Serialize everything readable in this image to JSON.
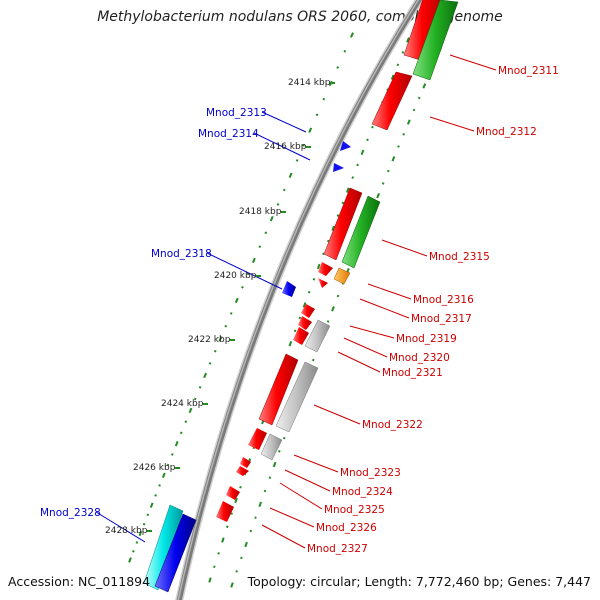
{
  "title": "Methylobacterium nodulans ORS 2060, complete genome",
  "footer": {
    "accession": "Accession: NC_011894",
    "summary": "Topology: circular; Length: 7,772,460 bp; Genes: 7,447"
  },
  "colors": {
    "forward": "#ff0000",
    "reverse": "#0000ff",
    "rna": "#00cc00",
    "pseudo": "#bbbbbb",
    "other": "#ff9900",
    "cyan": "#00e5e5",
    "label_forward": "#cc0000",
    "label_reverse": "#0000cc",
    "tick": "#228b22"
  },
  "scale_labels": [
    "2414 kbp",
    "2416 kbp",
    "2418 kbp",
    "2420 kbp",
    "2422 kbp",
    "2424 kbp",
    "2426 kbp",
    "2428 kbp"
  ],
  "gene_labels": {
    "forward": [
      "Mnod_2311",
      "Mnod_2312",
      "Mnod_2315",
      "Mnod_2316",
      "Mnod_2317",
      "Mnod_2319",
      "Mnod_2320",
      "Mnod_2321",
      "Mnod_2322",
      "Mnod_2323",
      "Mnod_2324",
      "Mnod_2325",
      "Mnod_2326",
      "Mnod_2327"
    ],
    "reverse": [
      "Mnod_2313",
      "Mnod_2314",
      "Mnod_2318",
      "Mnod_2328"
    ]
  }
}
